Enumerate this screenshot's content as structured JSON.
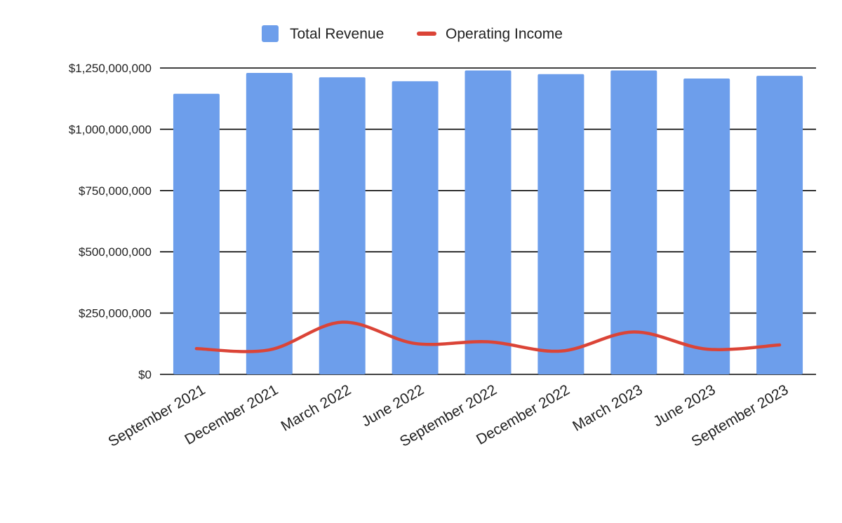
{
  "chart_data": {
    "type": "bar",
    "title": "",
    "xlabel": "",
    "ylabel": "",
    "categories": [
      "September 2021",
      "December 2021",
      "March 2022",
      "June 2022",
      "September 2022",
      "December 2022",
      "March 2023",
      "June 2023",
      "September 2023"
    ],
    "series": [
      {
        "name": "Total Revenue",
        "type": "bar",
        "color": "#6d9eeb",
        "values": [
          1145000000,
          1230000000,
          1212000000,
          1196000000,
          1240000000,
          1225000000,
          1240000000,
          1207000000,
          1218000000
        ]
      },
      {
        "name": "Operating Income",
        "type": "line",
        "smooth": true,
        "color": "#db4437",
        "values": [
          105000000,
          100000000,
          213000000,
          126000000,
          133000000,
          95000000,
          173000000,
          103000000,
          120000000
        ]
      }
    ],
    "ylim": [
      0,
      1250000000
    ],
    "yticks": [
      0,
      250000000,
      500000000,
      750000000,
      1000000000,
      1250000000
    ],
    "ytick_labels": [
      "$0",
      "$250,000,000",
      "$500,000,000",
      "$750,000,000",
      "$1,000,000,000",
      "$1,250,000,000"
    ],
    "grid": true,
    "legend_position": "top"
  }
}
